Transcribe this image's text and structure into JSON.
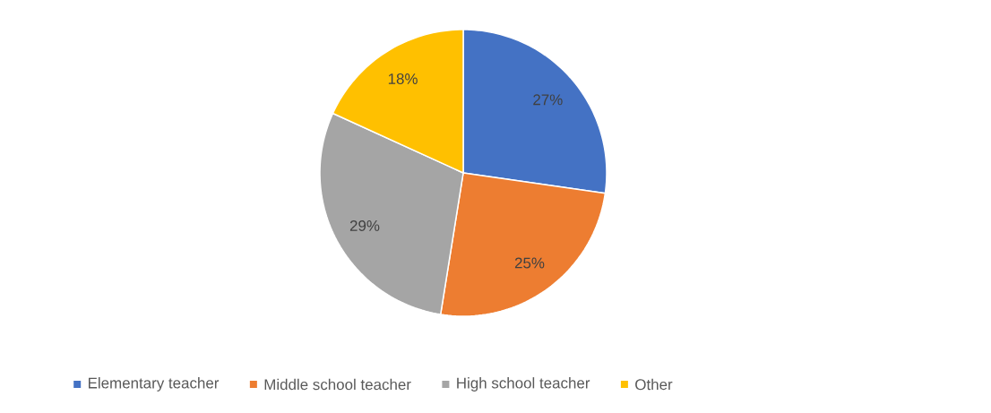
{
  "chart_data": {
    "type": "pie",
    "categories": [
      "Elementary teacher",
      "Middle school teacher",
      "High school teacher",
      "Other"
    ],
    "values": [
      27,
      25,
      29,
      18
    ],
    "colors": [
      "#4472c4",
      "#ed7d31",
      "#a5a5a5",
      "#ffc000"
    ],
    "value_labels": [
      "27%",
      "25%",
      "29%",
      "18%"
    ],
    "legend": "bottom"
  }
}
